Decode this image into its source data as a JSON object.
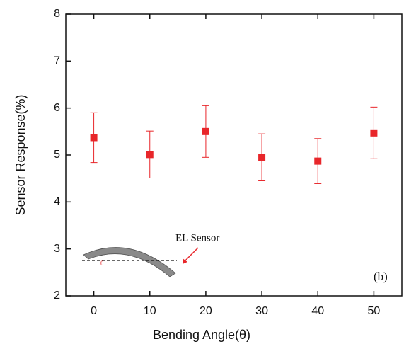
{
  "chart_data": {
    "type": "scatter",
    "x_label": "Bending Angle(θ)",
    "y_label": "Sensor Response(%)",
    "x": [
      0,
      10,
      20,
      30,
      40,
      50
    ],
    "series": [
      {
        "color": "#e8262a",
        "values": [
          5.37,
          5.01,
          5.5,
          4.95,
          4.87,
          5.47
        ],
        "errors": [
          0.53,
          0.5,
          0.55,
          0.5,
          0.48,
          0.55
        ]
      }
    ],
    "xlim": [
      -5,
      55
    ],
    "xticks": [
      0,
      10,
      20,
      30,
      40,
      50
    ],
    "ylim": [
      2,
      8
    ],
    "yticks": [
      2,
      3,
      4,
      5,
      6,
      7,
      8
    ],
    "annotations": {
      "panel": "(b)",
      "inset_label": "EL Sensor",
      "inset_angle": "θ"
    }
  }
}
